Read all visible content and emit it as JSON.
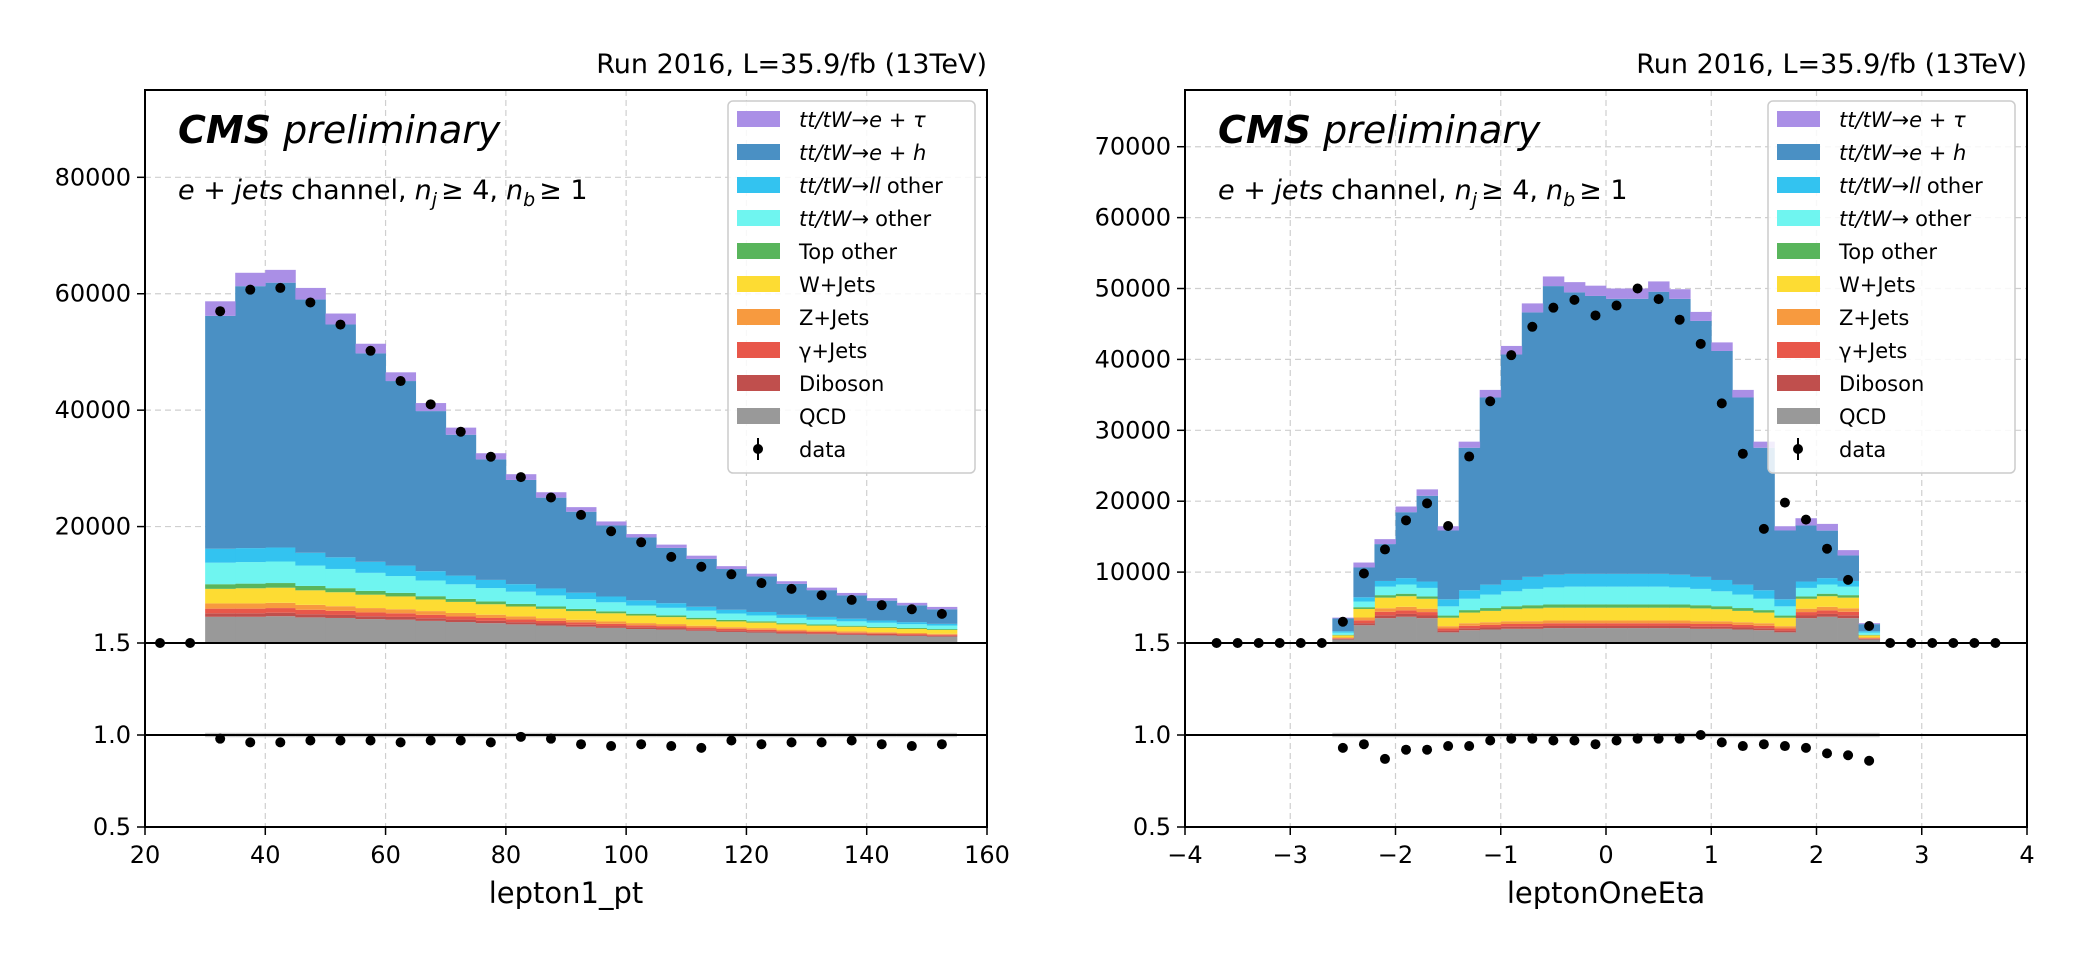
{
  "chart_data": [
    {
      "type": "bar",
      "run_label": "Run 2016, L=35.9/fb (13TeV)",
      "cms_bold": "CMS",
      "cms_italic": "preliminary",
      "channel": {
        "italic": "e + jets",
        "plain": "channel,",
        "nj": "n",
        "nj_sub": "j",
        "nj_rel": "≥ 4,",
        "nb": "n",
        "nb_sub": "b",
        "nb_rel": "≥ 1"
      },
      "xlabel": "lepton1_pt",
      "xlim": [
        20,
        160
      ],
      "xticks": [
        "20",
        "40",
        "60",
        "80",
        "100",
        "120",
        "140",
        "160"
      ],
      "ylim": [
        0,
        95000
      ],
      "yticks": [
        "20000",
        "40000",
        "60000",
        "80000"
      ],
      "ratio_ylim": [
        0.5,
        1.5
      ],
      "ratio_yticks": [
        "0.5",
        "1.0",
        "1.5"
      ],
      "bin_edges": [
        30,
        35,
        40,
        45,
        50,
        55,
        60,
        65,
        70,
        75,
        80,
        85,
        90,
        95,
        100,
        105,
        110,
        115,
        120,
        125,
        130,
        135,
        140,
        145,
        150,
        155
      ],
      "series": [
        {
          "name": "QCD",
          "values": [
            4500,
            4500,
            4600,
            4400,
            4300,
            4100,
            4000,
            3800,
            3600,
            3400,
            3200,
            3000,
            2800,
            2600,
            2400,
            2300,
            2100,
            1900,
            1800,
            1600,
            1500,
            1400,
            1300,
            1200,
            1100
          ]
        },
        {
          "name": "Diboson",
          "values": [
            600,
            600,
            600,
            550,
            520,
            500,
            480,
            450,
            420,
            400,
            380,
            350,
            330,
            310,
            290,
            270,
            250,
            230,
            210,
            200,
            180,
            170,
            160,
            150,
            140
          ]
        },
        {
          "name": "γ+Jets",
          "values": [
            800,
            800,
            800,
            750,
            700,
            650,
            620,
            580,
            540,
            500,
            470,
            440,
            410,
            380,
            350,
            330,
            300,
            280,
            260,
            240,
            220,
            200,
            190,
            180,
            170
          ]
        },
        {
          "name": "Z+Jets",
          "values": [
            900,
            900,
            900,
            850,
            800,
            750,
            700,
            650,
            600,
            560,
            520,
            480,
            440,
            410,
            380,
            350,
            320,
            300,
            280,
            260,
            240,
            220,
            200,
            190,
            180
          ]
        },
        {
          "name": "W+Jets",
          "values": [
            2500,
            2600,
            2600,
            2500,
            2400,
            2300,
            2200,
            2000,
            1900,
            1800,
            1700,
            1600,
            1500,
            1400,
            1300,
            1200,
            1100,
            1000,
            950,
            900,
            850,
            800,
            750,
            700,
            650
          ]
        },
        {
          "name": "Top other",
          "values": [
            800,
            800,
            800,
            750,
            700,
            650,
            600,
            560,
            520,
            480,
            440,
            400,
            370,
            340,
            310,
            290,
            270,
            250,
            230,
            210,
            190,
            180,
            170,
            160,
            150
          ]
        },
        {
          "name": "tt/tW→ other",
          "values": [
            3700,
            3700,
            3700,
            3500,
            3300,
            3100,
            2900,
            2700,
            2500,
            2300,
            2100,
            1900,
            1700,
            1550,
            1400,
            1300,
            1200,
            1100,
            1000,
            900,
            800,
            750,
            700,
            650,
            600
          ]
        },
        {
          "name": "tt/tW→ll other",
          "values": [
            2400,
            2400,
            2400,
            2200,
            2000,
            1900,
            1800,
            1600,
            1500,
            1400,
            1300,
            1200,
            1100,
            1000,
            900,
            800,
            700,
            650,
            600,
            550,
            500,
            450,
            400,
            350,
            300
          ]
        },
        {
          "name": "tt/tW→e+h",
          "values": [
            40000,
            45000,
            45500,
            43500,
            40000,
            35800,
            31700,
            27500,
            24200,
            20700,
            17900,
            15600,
            13900,
            12200,
            10800,
            9500,
            8200,
            7000,
            6100,
            5300,
            4600,
            4000,
            3400,
            2900,
            2500
          ]
        },
        {
          "name": "tt/tW→e+τ",
          "values": [
            2500,
            2300,
            2200,
            2000,
            1880,
            1660,
            1500,
            1380,
            1220,
            1060,
            990,
            930,
            790,
            690,
            580,
            560,
            560,
            490,
            470,
            450,
            430,
            430,
            430,
            420,
            410
          ]
        }
      ],
      "data_points": {
        "x": [
          22.5,
          27.5,
          32.5,
          37.5,
          42.5,
          47.5,
          52.5,
          57.5,
          62.5,
          67.5,
          72.5,
          77.5,
          82.5,
          87.5,
          92.5,
          97.5,
          102.5,
          107.5,
          112.5,
          117.5,
          122.5,
          127.5,
          132.5,
          137.5,
          142.5,
          147.5,
          152.5
        ],
        "y": [
          0,
          0,
          57000,
          60700,
          61000,
          58500,
          54700,
          50200,
          45000,
          41000,
          36300,
          32000,
          28500,
          25000,
          22000,
          19200,
          17300,
          14800,
          13100,
          11800,
          10300,
          9300,
          8200,
          7400,
          6500,
          5800,
          5000
        ]
      },
      "ratio_points": {
        "x": [
          32.5,
          37.5,
          42.5,
          47.5,
          52.5,
          57.5,
          62.5,
          67.5,
          72.5,
          77.5,
          82.5,
          87.5,
          92.5,
          97.5,
          102.5,
          107.5,
          112.5,
          117.5,
          122.5,
          127.5,
          132.5,
          137.5,
          142.5,
          147.5,
          152.5
        ],
        "y": [
          0.98,
          0.96,
          0.96,
          0.97,
          0.97,
          0.97,
          0.96,
          0.97,
          0.97,
          0.96,
          0.99,
          0.98,
          0.95,
          0.94,
          0.95,
          0.94,
          0.93,
          0.97,
          0.95,
          0.96,
          0.96,
          0.97,
          0.95,
          0.94,
          0.95
        ]
      },
      "grid": true,
      "legend_position": "top-right"
    },
    {
      "type": "bar",
      "run_label": "Run 2016, L=35.9/fb (13TeV)",
      "cms_bold": "CMS",
      "cms_italic": "preliminary",
      "channel": {
        "italic": "e + jets",
        "plain": "channel,",
        "nj": "n",
        "nj_sub": "j",
        "nj_rel": "≥ 4,",
        "nb": "n",
        "nb_sub": "b",
        "nb_rel": "≥ 1"
      },
      "xlabel": "leptonOneEta",
      "xlim": [
        -4,
        4
      ],
      "xticks": [
        "−4",
        "−3",
        "−2",
        "−1",
        "0",
        "1",
        "2",
        "3",
        "4"
      ],
      "ylim": [
        0,
        78000
      ],
      "yticks": [
        "10000",
        "20000",
        "30000",
        "40000",
        "50000",
        "60000",
        "70000"
      ],
      "ratio_ylim": [
        0.5,
        1.5
      ],
      "ratio_yticks": [
        "0.5",
        "1.0",
        "1.5"
      ],
      "bin_edges": [
        -2.6,
        -2.4,
        -2.2,
        -2.0,
        -1.8,
        -1.6,
        -1.4,
        -1.2,
        -1.0,
        -0.8,
        -0.6,
        -0.4,
        -0.2,
        0.0,
        0.2,
        0.4,
        0.6,
        0.8,
        1.0,
        1.2,
        1.4,
        1.6,
        1.8,
        2.0,
        2.2,
        2.4,
        2.6
      ],
      "series": [
        {
          "name": "QCD",
          "values": [
            500,
            2500,
            3500,
            3700,
            3500,
            1500,
            1800,
            1900,
            2000,
            2000,
            2100,
            2100,
            2100,
            2100,
            2100,
            2100,
            2100,
            2000,
            2000,
            1900,
            1800,
            1500,
            3500,
            3700,
            3500,
            500
          ]
        },
        {
          "name": "Diboson",
          "values": [
            80,
            300,
            400,
            400,
            380,
            250,
            280,
            290,
            300,
            300,
            300,
            300,
            300,
            300,
            300,
            300,
            300,
            300,
            300,
            290,
            280,
            250,
            380,
            400,
            400,
            80
          ]
        },
        {
          "name": "γ+Jets",
          "values": [
            100,
            400,
            500,
            500,
            480,
            300,
            350,
            360,
            380,
            380,
            380,
            380,
            380,
            380,
            380,
            380,
            380,
            380,
            380,
            360,
            350,
            300,
            480,
            500,
            500,
            100
          ]
        },
        {
          "name": "Z+Jets",
          "values": [
            100,
            400,
            500,
            500,
            480,
            320,
            360,
            380,
            390,
            400,
            400,
            400,
            400,
            400,
            400,
            400,
            400,
            400,
            390,
            380,
            360,
            320,
            480,
            500,
            500,
            100
          ]
        },
        {
          "name": "W+Jets",
          "values": [
            300,
            1200,
            1500,
            1500,
            1400,
            1200,
            1500,
            1600,
            1700,
            1800,
            1800,
            1800,
            1800,
            1800,
            1800,
            1800,
            1800,
            1800,
            1700,
            1600,
            1500,
            1200,
            1400,
            1500,
            1500,
            300
          ]
        },
        {
          "name": "Top other",
          "values": [
            80,
            250,
            350,
            350,
            330,
            300,
            350,
            400,
            420,
            450,
            460,
            470,
            470,
            470,
            470,
            470,
            460,
            450,
            420,
            400,
            350,
            300,
            330,
            350,
            350,
            80
          ]
        },
        {
          "name": "tt/tW→ other",
          "values": [
            300,
            800,
            1200,
            1300,
            1200,
            1300,
            1600,
            1900,
            2100,
            2300,
            2400,
            2500,
            2500,
            2500,
            2500,
            2500,
            2400,
            2300,
            2100,
            1900,
            1600,
            1300,
            1200,
            1300,
            1200,
            300
          ]
        },
        {
          "name": "tt/tW→ll other",
          "values": [
            200,
            600,
            800,
            900,
            900,
            1000,
            1200,
            1400,
            1600,
            1700,
            1800,
            1800,
            1800,
            1800,
            1800,
            1800,
            1800,
            1700,
            1600,
            1400,
            1200,
            1000,
            900,
            900,
            800,
            200
          ]
        },
        {
          "name": "tt/tW→e+h",
          "values": [
            1800,
            4200,
            5200,
            9300,
            12100,
            9700,
            20100,
            26400,
            31800,
            37300,
            40700,
            39700,
            39200,
            38800,
            38800,
            39800,
            38900,
            36100,
            32300,
            26400,
            20100,
            9700,
            7900,
            6700,
            3600,
            1000
          ]
        },
        {
          "name": "tt/tW→e+τ",
          "values": [
            120,
            700,
            700,
            800,
            900,
            600,
            860,
            1070,
            1210,
            1270,
            1360,
            1450,
            1450,
            1450,
            1450,
            1450,
            1360,
            1270,
            1210,
            1070,
            860,
            600,
            1030,
            950,
            750,
            140
          ]
        }
      ],
      "data_points": {
        "x": [
          -3.7,
          -3.5,
          -3.3,
          -3.1,
          -2.9,
          -2.7,
          -2.5,
          -2.3,
          -2.1,
          -1.9,
          -1.7,
          -1.5,
          -1.3,
          -1.1,
          -0.9,
          -0.7,
          -0.5,
          -0.3,
          -0.1,
          0.1,
          0.3,
          0.5,
          0.7,
          0.9,
          1.1,
          1.3,
          1.5,
          1.7,
          1.9,
          2.1,
          2.3,
          2.5,
          2.7,
          2.9,
          3.1,
          3.3,
          3.5,
          3.7
        ],
        "y": [
          0,
          0,
          0,
          0,
          0,
          0,
          3000,
          9800,
          13200,
          17300,
          19700,
          16500,
          26300,
          34100,
          40600,
          44600,
          47300,
          48400,
          46200,
          47600,
          50000,
          48500,
          45600,
          42200,
          33800,
          26700,
          16100,
          19800,
          17400,
          13300,
          8900,
          2400,
          0,
          0,
          0,
          0,
          0,
          0
        ]
      },
      "ratio_points": {
        "x": [
          -2.5,
          -2.3,
          -2.1,
          -1.9,
          -1.7,
          -1.5,
          -1.3,
          -1.1,
          -0.9,
          -0.7,
          -0.5,
          -0.3,
          -0.1,
          0.1,
          0.3,
          0.5,
          0.7,
          0.9,
          1.1,
          1.3,
          1.5,
          1.7,
          1.9,
          2.1,
          2.3,
          2.5
        ],
        "y": [
          0.93,
          0.95,
          0.87,
          0.92,
          0.92,
          0.94,
          0.94,
          0.97,
          0.98,
          0.98,
          0.97,
          0.97,
          0.95,
          0.97,
          0.98,
          0.98,
          0.98,
          1.0,
          0.96,
          0.94,
          0.95,
          0.94,
          0.93,
          0.9,
          0.89,
          0.86
        ]
      },
      "grid": true,
      "legend_position": "top-right"
    }
  ],
  "legend": [
    {
      "prefix": "tt/tW",
      "arrow": "→",
      "suffix": "e + τ",
      "italic_suffix": true,
      "color": "#aa8fe6"
    },
    {
      "prefix": "tt/tW",
      "arrow": "→",
      "suffix": "e + h",
      "italic_suffix": true,
      "color": "#4a90c4"
    },
    {
      "prefix": "tt/tW",
      "arrow": "→",
      "suffix": "ll",
      "tail": "other",
      "italic_suffix": true,
      "color": "#33c3f0"
    },
    {
      "prefix": "tt/tW",
      "arrow": "→",
      "suffix": "",
      "tail": "other",
      "italic_suffix": false,
      "color": "#6ff5f0"
    },
    {
      "label": "Top other",
      "color": "#59b55c"
    },
    {
      "label": "W+Jets",
      "color": "#fddc33"
    },
    {
      "label": "Z+Jets",
      "color": "#f79a3f"
    },
    {
      "label": "γ+Jets",
      "color": "#e8574a"
    },
    {
      "label": "Diboson",
      "color": "#c04f4d"
    },
    {
      "label": "QCD",
      "color": "#999999"
    },
    {
      "label": "data",
      "color": "#000000"
    }
  ],
  "colors": {
    "QCD": "#999999",
    "Diboson": "#c04f4d",
    "γ+Jets": "#e8574a",
    "Z+Jets": "#f79a3f",
    "W+Jets": "#fddc33",
    "Top other": "#59b55c",
    "tt/tW→ other": "#6ff5f0",
    "tt/tW→ll other": "#33c3f0",
    "tt/tW→e+h": "#4a90c4",
    "tt/tW→e+τ": "#aa8fe6"
  }
}
